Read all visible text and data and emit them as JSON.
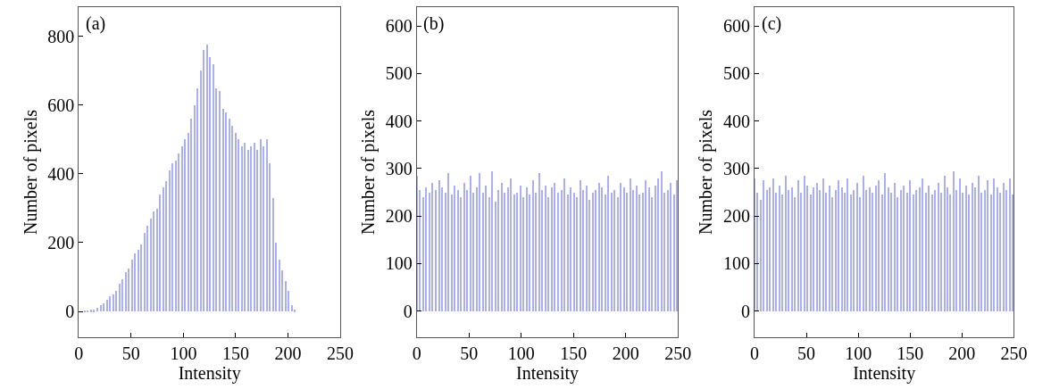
{
  "chart_data": [
    {
      "type": "bar",
      "xlabel": "Intensity",
      "ylabel": "Number of pixels",
      "annotations": [
        "(a)"
      ],
      "color": "#a9aef5",
      "xlim": [
        0,
        250
      ],
      "xticks": [
        0,
        50,
        100,
        150,
        200,
        250
      ],
      "ylim": [
        -75,
        885
      ],
      "yticks": [
        0,
        200,
        400,
        600,
        800
      ],
      "x": [
        0,
        3,
        6,
        9,
        12,
        15,
        18,
        21,
        24,
        27,
        30,
        33,
        36,
        39,
        42,
        45,
        48,
        51,
        54,
        57,
        60,
        63,
        66,
        69,
        72,
        75,
        78,
        81,
        84,
        87,
        90,
        93,
        96,
        99,
        102,
        105,
        108,
        111,
        114,
        117,
        120,
        123,
        126,
        129,
        132,
        135,
        138,
        141,
        144,
        147,
        150,
        153,
        156,
        159,
        162,
        165,
        168,
        171,
        174,
        177,
        180,
        183,
        186,
        189,
        192,
        195,
        198,
        201,
        204,
        207,
        210,
        213,
        216,
        219,
        222,
        225,
        228,
        231,
        234,
        237,
        240,
        243,
        246,
        249
      ],
      "values": [
        0,
        null,
        2,
        3,
        5,
        5,
        10,
        18,
        25,
        35,
        45,
        50,
        60,
        80,
        95,
        115,
        125,
        150,
        170,
        180,
        195,
        230,
        250,
        270,
        290,
        300,
        340,
        360,
        380,
        410,
        430,
        440,
        460,
        480,
        500,
        520,
        560,
        600,
        650,
        700,
        760,
        775,
        740,
        720,
        650,
        640,
        590,
        580,
        560,
        540,
        520,
        500,
        480,
        490,
        470,
        480,
        490,
        470,
        500,
        480,
        500,
        430,
        330,
        200,
        150,
        120,
        90,
        60,
        20,
        5,
        0,
        0,
        0,
        0,
        0,
        0,
        0,
        0,
        0,
        0,
        0,
        0,
        0,
        0
      ]
    },
    {
      "type": "bar",
      "xlabel": "Intensity",
      "ylabel": "Number of pixels",
      "annotations": [
        "(b)"
      ],
      "color": "#a9aef5",
      "xlim": [
        0,
        250
      ],
      "xticks": [
        0,
        50,
        100,
        150,
        200,
        250
      ],
      "ylim": [
        -55,
        640
      ],
      "yticks": [
        0,
        100,
        200,
        300,
        400,
        500,
        600
      ],
      "x": [
        0,
        3,
        6,
        9,
        12,
        15,
        18,
        21,
        24,
        27,
        30,
        33,
        36,
        39,
        42,
        45,
        48,
        51,
        54,
        57,
        60,
        63,
        66,
        69,
        72,
        75,
        78,
        81,
        84,
        87,
        90,
        93,
        96,
        99,
        102,
        105,
        108,
        111,
        114,
        117,
        120,
        123,
        126,
        129,
        132,
        135,
        138,
        141,
        144,
        147,
        150,
        153,
        156,
        159,
        162,
        165,
        168,
        171,
        174,
        177,
        180,
        183,
        186,
        189,
        192,
        195,
        198,
        201,
        204,
        207,
        210,
        213,
        216,
        219,
        222,
        225,
        228,
        231,
        234,
        237,
        240,
        243,
        246,
        249
      ],
      "values": [
        285,
        255,
        240,
        260,
        250,
        270,
        255,
        275,
        260,
        250,
        290,
        245,
        265,
        255,
        240,
        270,
        255,
        285,
        250,
        260,
        290,
        250,
        265,
        240,
        295,
        230,
        255,
        270,
        250,
        260,
        280,
        245,
        250,
        265,
        240,
        260,
        245,
        275,
        250,
        290,
        255,
        265,
        240,
        260,
        270,
        250,
        255,
        280,
        245,
        260,
        250,
        240,
        275,
        255,
        265,
        235,
        250,
        255,
        270,
        260,
        245,
        285,
        250,
        255,
        240,
        270,
        260,
        250,
        280,
        255,
        265,
        245,
        250,
        275,
        260,
        240,
        265,
        280,
        295,
        250,
        255,
        270,
        245,
        275
      ]
    },
    {
      "type": "bar",
      "xlabel": "Intensity",
      "ylabel": "Number of pixels",
      "annotations": [
        "(c)"
      ],
      "color": "#a9aef5",
      "xlim": [
        0,
        250
      ],
      "xticks": [
        0,
        50,
        100,
        150,
        200,
        250
      ],
      "ylim": [
        -55,
        640
      ],
      "yticks": [
        0,
        100,
        200,
        300,
        400,
        500,
        600
      ],
      "x": [
        0,
        3,
        6,
        9,
        12,
        15,
        18,
        21,
        24,
        27,
        30,
        33,
        36,
        39,
        42,
        45,
        48,
        51,
        54,
        57,
        60,
        63,
        66,
        69,
        72,
        75,
        78,
        81,
        84,
        87,
        90,
        93,
        96,
        99,
        102,
        105,
        108,
        111,
        114,
        117,
        120,
        123,
        126,
        129,
        132,
        135,
        138,
        141,
        144,
        147,
        150,
        153,
        156,
        159,
        162,
        165,
        168,
        171,
        174,
        177,
        180,
        183,
        186,
        189,
        192,
        195,
        198,
        201,
        204,
        207,
        210,
        213,
        216,
        219,
        222,
        225,
        228,
        231,
        234,
        237,
        240,
        243,
        246,
        249
      ],
      "values": [
        280,
        250,
        235,
        275,
        255,
        260,
        280,
        250,
        265,
        245,
        285,
        255,
        260,
        240,
        275,
        250,
        285,
        265,
        245,
        260,
        270,
        255,
        280,
        250,
        265,
        240,
        255,
        275,
        260,
        250,
        280,
        245,
        255,
        270,
        240,
        285,
        255,
        260,
        250,
        265,
        275,
        245,
        290,
        260,
        250,
        270,
        240,
        255,
        265,
        250,
        275,
        245,
        255,
        260,
        280,
        250,
        265,
        245,
        255,
        270,
        250,
        285,
        260,
        245,
        295,
        255,
        280,
        250,
        265,
        245,
        270,
        260,
        285,
        250,
        255,
        275,
        245,
        280,
        260,
        250,
        270,
        255,
        280,
        245
      ]
    }
  ]
}
